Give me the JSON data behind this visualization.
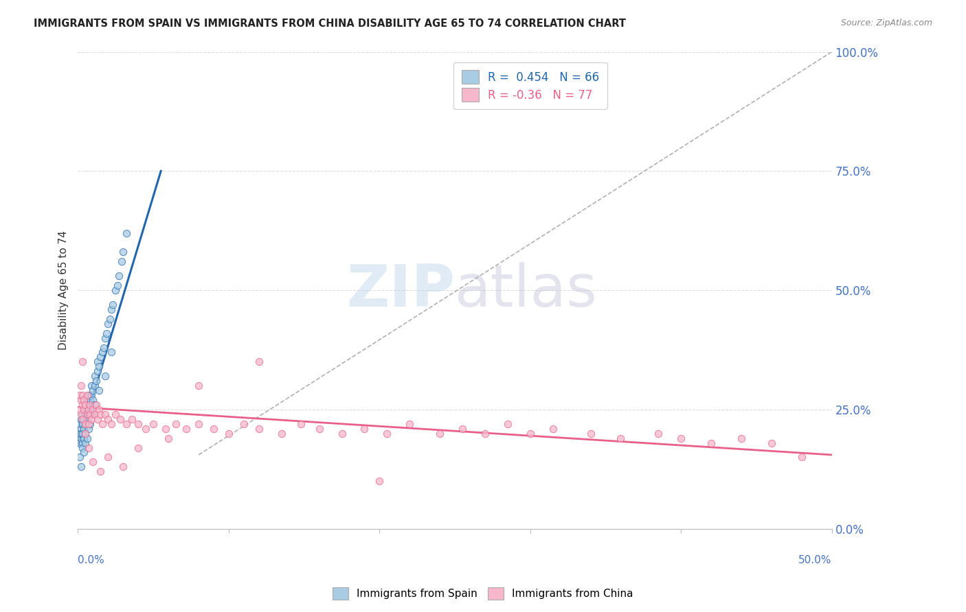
{
  "title": "IMMIGRANTS FROM SPAIN VS IMMIGRANTS FROM CHINA DISABILITY AGE 65 TO 74 CORRELATION CHART",
  "source": "Source: ZipAtlas.com",
  "ylabel": "Disability Age 65 to 74",
  "legend_spain": "Immigrants from Spain",
  "legend_china": "Immigrants from China",
  "r_spain": 0.454,
  "n_spain": 66,
  "r_china": -0.36,
  "n_china": 77,
  "color_spain": "#a8cce4",
  "color_china": "#f7b8cb",
  "color_spain_line": "#2166ac",
  "color_china_line": "#e8608a",
  "xlim": [
    0.0,
    0.5
  ],
  "ylim": [
    0.0,
    1.0
  ],
  "yticks": [
    0.0,
    0.25,
    0.5,
    0.75,
    1.0
  ],
  "ytick_labels": [
    "0.0%",
    "25.0%",
    "50.0%",
    "75.0%",
    "100.0%"
  ],
  "background_color": "#ffffff",
  "grid_color": "#dddddd",
  "spain_scatter_x": [
    0.001,
    0.001,
    0.001,
    0.002,
    0.002,
    0.002,
    0.002,
    0.003,
    0.003,
    0.003,
    0.003,
    0.003,
    0.004,
    0.004,
    0.004,
    0.004,
    0.005,
    0.005,
    0.005,
    0.005,
    0.006,
    0.006,
    0.006,
    0.007,
    0.007,
    0.007,
    0.008,
    0.008,
    0.009,
    0.009,
    0.01,
    0.01,
    0.011,
    0.011,
    0.012,
    0.013,
    0.013,
    0.014,
    0.015,
    0.016,
    0.017,
    0.018,
    0.019,
    0.02,
    0.021,
    0.022,
    0.023,
    0.025,
    0.026,
    0.027,
    0.029,
    0.03,
    0.032,
    0.001,
    0.002,
    0.003,
    0.004,
    0.005,
    0.006,
    0.007,
    0.008,
    0.009,
    0.011,
    0.014,
    0.018,
    0.022
  ],
  "spain_scatter_y": [
    0.2,
    0.18,
    0.22,
    0.21,
    0.19,
    0.23,
    0.2,
    0.22,
    0.24,
    0.18,
    0.2,
    0.22,
    0.23,
    0.21,
    0.25,
    0.19,
    0.24,
    0.22,
    0.26,
    0.2,
    0.25,
    0.23,
    0.27,
    0.26,
    0.24,
    0.28,
    0.27,
    0.25,
    0.28,
    0.3,
    0.29,
    0.27,
    0.3,
    0.32,
    0.31,
    0.33,
    0.35,
    0.34,
    0.36,
    0.37,
    0.38,
    0.4,
    0.41,
    0.43,
    0.44,
    0.46,
    0.47,
    0.5,
    0.51,
    0.53,
    0.56,
    0.58,
    0.62,
    0.15,
    0.13,
    0.17,
    0.16,
    0.18,
    0.19,
    0.21,
    0.22,
    0.24,
    0.26,
    0.29,
    0.32,
    0.37
  ],
  "china_scatter_x": [
    0.001,
    0.001,
    0.002,
    0.002,
    0.002,
    0.003,
    0.003,
    0.003,
    0.004,
    0.004,
    0.005,
    0.005,
    0.006,
    0.006,
    0.007,
    0.007,
    0.008,
    0.008,
    0.009,
    0.01,
    0.011,
    0.012,
    0.013,
    0.014,
    0.015,
    0.016,
    0.018,
    0.02,
    0.022,
    0.025,
    0.028,
    0.032,
    0.036,
    0.04,
    0.045,
    0.05,
    0.058,
    0.065,
    0.072,
    0.08,
    0.09,
    0.1,
    0.11,
    0.12,
    0.135,
    0.148,
    0.16,
    0.175,
    0.19,
    0.205,
    0.22,
    0.24,
    0.255,
    0.27,
    0.285,
    0.3,
    0.315,
    0.34,
    0.36,
    0.385,
    0.4,
    0.42,
    0.44,
    0.46,
    0.003,
    0.005,
    0.007,
    0.01,
    0.015,
    0.02,
    0.03,
    0.04,
    0.06,
    0.08,
    0.12,
    0.2,
    0.48
  ],
  "china_scatter_y": [
    0.28,
    0.25,
    0.27,
    0.24,
    0.3,
    0.26,
    0.28,
    0.23,
    0.25,
    0.27,
    0.26,
    0.22,
    0.24,
    0.28,
    0.25,
    0.22,
    0.24,
    0.26,
    0.23,
    0.25,
    0.24,
    0.26,
    0.23,
    0.25,
    0.24,
    0.22,
    0.24,
    0.23,
    0.22,
    0.24,
    0.23,
    0.22,
    0.23,
    0.22,
    0.21,
    0.22,
    0.21,
    0.22,
    0.21,
    0.22,
    0.21,
    0.2,
    0.22,
    0.21,
    0.2,
    0.22,
    0.21,
    0.2,
    0.21,
    0.2,
    0.22,
    0.2,
    0.21,
    0.2,
    0.22,
    0.2,
    0.21,
    0.2,
    0.19,
    0.2,
    0.19,
    0.18,
    0.19,
    0.18,
    0.35,
    0.2,
    0.17,
    0.14,
    0.12,
    0.15,
    0.13,
    0.17,
    0.19,
    0.3,
    0.35,
    0.1,
    0.15
  ],
  "spain_line_x": [
    0.0,
    0.055
  ],
  "spain_line_y": [
    0.175,
    0.75
  ],
  "china_line_x": [
    0.0,
    0.5
  ],
  "china_line_y": [
    0.255,
    0.155
  ],
  "diag_line_x": [
    0.08,
    0.5
  ],
  "diag_line_y": [
    0.155,
    1.0
  ]
}
